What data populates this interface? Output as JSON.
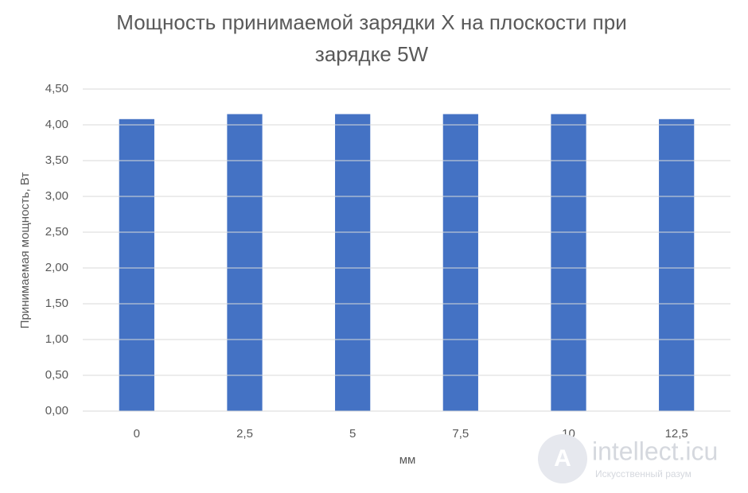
{
  "chart_data": {
    "type": "bar",
    "title": "Мощность принимаемой зарядки X на плоскости при зарядке 5W",
    "x_label": "мм",
    "y_label": "Принимаемая мощность, Вт",
    "categories": [
      "0",
      "2,5",
      "5",
      "7,5",
      "10",
      "12,5"
    ],
    "values": [
      4.08,
      4.15,
      4.15,
      4.15,
      4.15,
      4.08
    ],
    "color": "#4472c4",
    "ylim": [
      0,
      4.5
    ],
    "yticks": [
      {
        "value": 0,
        "label": "0,00"
      },
      {
        "value": 0.5,
        "label": "0,50"
      },
      {
        "value": 1,
        "label": "1,00"
      },
      {
        "value": 1.5,
        "label": "1,50"
      },
      {
        "value": 2,
        "label": "2,00"
      },
      {
        "value": 2.5,
        "label": "2,50"
      },
      {
        "value": 3,
        "label": "3,00"
      },
      {
        "value": 3.5,
        "label": "3,50"
      },
      {
        "value": 4,
        "label": "4,00"
      },
      {
        "value": 4.5,
        "label": "4,50"
      }
    ],
    "grid": true
  },
  "watermark": {
    "title": "intellect.icu",
    "subtitle": "Искусственный разум"
  }
}
